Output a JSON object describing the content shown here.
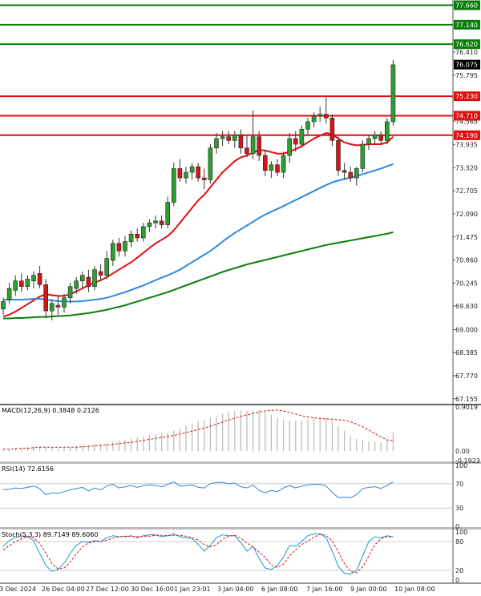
{
  "chart_data": {
    "type": "candlestick",
    "title": "",
    "price_axis": {
      "range": [
        67.0,
        77.8
      ],
      "ticks": [
        "76.410",
        "75.795",
        "75.180",
        "74.565",
        "73.935",
        "73.320",
        "72.705",
        "72.090",
        "71.475",
        "70.860",
        "70.245",
        "69.630",
        "69.000",
        "68.385",
        "67.770",
        "67.155"
      ],
      "current_price": "76.075"
    },
    "x_labels": [
      "23 Dec 2024",
      "26 Dec 04:00",
      "27 Dec 12:00",
      "30 Dec 16:00",
      "1 Jan 23:01",
      "3 Jan 04:00",
      "6 Jan 08:00",
      "7 Jan 16:00",
      "9 Jan 00:00",
      "10 Jan 08:00"
    ],
    "levels": [
      {
        "value": 77.66,
        "label": "77.660",
        "color": "#0a7d0a"
      },
      {
        "value": 77.14,
        "label": "77.140",
        "color": "#0a7d0a"
      },
      {
        "value": 76.62,
        "label": "76.620",
        "color": "#0a7d0a"
      },
      {
        "value": 75.23,
        "label": "75.230",
        "color": "#e01010"
      },
      {
        "value": 74.71,
        "label": "74.710",
        "color": "#e01010"
      },
      {
        "value": 74.19,
        "label": "74.190",
        "color": "#e01010"
      }
    ],
    "candles": [
      {
        "o": 69.55,
        "h": 69.85,
        "l": 69.4,
        "c": 69.75
      },
      {
        "o": 69.8,
        "h": 70.25,
        "l": 69.7,
        "c": 70.1
      },
      {
        "o": 70.05,
        "h": 70.45,
        "l": 69.9,
        "c": 70.3
      },
      {
        "o": 70.3,
        "h": 70.5,
        "l": 70.0,
        "c": 70.15
      },
      {
        "o": 70.15,
        "h": 70.45,
        "l": 70.05,
        "c": 70.35
      },
      {
        "o": 70.3,
        "h": 70.55,
        "l": 70.1,
        "c": 70.45
      },
      {
        "o": 70.5,
        "h": 70.7,
        "l": 70.1,
        "c": 70.2
      },
      {
        "o": 70.2,
        "h": 70.35,
        "l": 69.3,
        "c": 69.5
      },
      {
        "o": 69.5,
        "h": 69.8,
        "l": 69.25,
        "c": 69.7
      },
      {
        "o": 69.65,
        "h": 69.9,
        "l": 69.4,
        "c": 69.6
      },
      {
        "o": 69.6,
        "h": 69.95,
        "l": 69.45,
        "c": 69.85
      },
      {
        "o": 69.85,
        "h": 70.25,
        "l": 69.7,
        "c": 70.15
      },
      {
        "o": 70.1,
        "h": 70.4,
        "l": 69.95,
        "c": 70.3
      },
      {
        "o": 70.3,
        "h": 70.55,
        "l": 70.1,
        "c": 70.45
      },
      {
        "o": 70.4,
        "h": 70.6,
        "l": 70.0,
        "c": 70.15
      },
      {
        "o": 70.15,
        "h": 70.7,
        "l": 70.05,
        "c": 70.6
      },
      {
        "o": 70.55,
        "h": 70.75,
        "l": 70.3,
        "c": 70.45
      },
      {
        "o": 70.45,
        "h": 71.1,
        "l": 70.35,
        "c": 70.9
      },
      {
        "o": 70.85,
        "h": 71.4,
        "l": 70.7,
        "c": 71.3
      },
      {
        "o": 71.3,
        "h": 71.45,
        "l": 70.95,
        "c": 71.1
      },
      {
        "o": 71.1,
        "h": 71.5,
        "l": 70.95,
        "c": 71.35
      },
      {
        "o": 71.35,
        "h": 71.65,
        "l": 71.2,
        "c": 71.55
      },
      {
        "o": 71.55,
        "h": 71.7,
        "l": 71.35,
        "c": 71.45
      },
      {
        "o": 71.45,
        "h": 71.85,
        "l": 71.35,
        "c": 71.75
      },
      {
        "o": 71.75,
        "h": 71.95,
        "l": 71.6,
        "c": 71.85
      },
      {
        "o": 71.85,
        "h": 72.05,
        "l": 71.7,
        "c": 71.9
      },
      {
        "o": 71.9,
        "h": 72.05,
        "l": 71.7,
        "c": 71.8
      },
      {
        "o": 71.8,
        "h": 72.55,
        "l": 71.7,
        "c": 72.4
      },
      {
        "o": 72.4,
        "h": 73.45,
        "l": 72.3,
        "c": 73.3
      },
      {
        "o": 73.3,
        "h": 73.55,
        "l": 72.95,
        "c": 73.05
      },
      {
        "o": 73.05,
        "h": 73.35,
        "l": 72.9,
        "c": 73.2
      },
      {
        "o": 73.2,
        "h": 73.45,
        "l": 73.0,
        "c": 73.35
      },
      {
        "o": 73.35,
        "h": 73.45,
        "l": 72.95,
        "c": 73.05
      },
      {
        "o": 73.05,
        "h": 73.3,
        "l": 72.75,
        "c": 73.0
      },
      {
        "o": 73.0,
        "h": 73.95,
        "l": 72.9,
        "c": 73.85
      },
      {
        "o": 73.85,
        "h": 74.25,
        "l": 73.7,
        "c": 74.1
      },
      {
        "o": 74.1,
        "h": 74.3,
        "l": 73.9,
        "c": 74.15
      },
      {
        "o": 74.15,
        "h": 74.3,
        "l": 73.95,
        "c": 74.05
      },
      {
        "o": 74.05,
        "h": 74.3,
        "l": 73.85,
        "c": 74.2
      },
      {
        "o": 74.2,
        "h": 74.35,
        "l": 73.7,
        "c": 73.85
      },
      {
        "o": 73.85,
        "h": 74.2,
        "l": 73.6,
        "c": 73.7
      },
      {
        "o": 73.7,
        "h": 74.85,
        "l": 73.55,
        "c": 74.15
      },
      {
        "o": 74.15,
        "h": 74.3,
        "l": 73.5,
        "c": 73.65
      },
      {
        "o": 73.65,
        "h": 73.8,
        "l": 73.1,
        "c": 73.25
      },
      {
        "o": 73.25,
        "h": 73.5,
        "l": 73.05,
        "c": 73.4
      },
      {
        "o": 73.4,
        "h": 73.55,
        "l": 73.1,
        "c": 73.2
      },
      {
        "o": 73.2,
        "h": 73.75,
        "l": 73.05,
        "c": 73.65
      },
      {
        "o": 73.65,
        "h": 74.25,
        "l": 73.45,
        "c": 74.1
      },
      {
        "o": 74.1,
        "h": 74.3,
        "l": 73.75,
        "c": 73.95
      },
      {
        "o": 73.95,
        "h": 74.45,
        "l": 73.85,
        "c": 74.35
      },
      {
        "o": 74.35,
        "h": 74.65,
        "l": 74.2,
        "c": 74.55
      },
      {
        "o": 74.55,
        "h": 74.8,
        "l": 74.4,
        "c": 74.7
      },
      {
        "o": 74.7,
        "h": 74.95,
        "l": 74.55,
        "c": 74.75
      },
      {
        "o": 74.75,
        "h": 75.2,
        "l": 74.5,
        "c": 74.65
      },
      {
        "o": 74.65,
        "h": 74.75,
        "l": 73.9,
        "c": 74.05
      },
      {
        "o": 74.05,
        "h": 74.15,
        "l": 73.1,
        "c": 73.25
      },
      {
        "o": 73.25,
        "h": 73.45,
        "l": 73.0,
        "c": 73.2
      },
      {
        "o": 73.2,
        "h": 73.35,
        "l": 72.95,
        "c": 73.05
      },
      {
        "o": 73.05,
        "h": 73.35,
        "l": 72.85,
        "c": 73.3
      },
      {
        "o": 73.3,
        "h": 74.05,
        "l": 73.2,
        "c": 73.95
      },
      {
        "o": 73.95,
        "h": 74.2,
        "l": 73.8,
        "c": 74.1
      },
      {
        "o": 74.1,
        "h": 74.3,
        "l": 73.95,
        "c": 74.2
      },
      {
        "o": 74.2,
        "h": 74.3,
        "l": 73.95,
        "c": 74.05
      },
      {
        "o": 74.05,
        "h": 74.65,
        "l": 73.95,
        "c": 74.55
      },
      {
        "o": 74.55,
        "h": 76.2,
        "l": 74.45,
        "c": 76.07
      }
    ],
    "moving_averages": [
      {
        "name": "MA fast",
        "color": "#e01010",
        "values": [
          69.35,
          69.4,
          69.48,
          69.58,
          69.68,
          69.78,
          69.88,
          69.95,
          69.92,
          69.9,
          69.9,
          69.95,
          70.02,
          70.1,
          70.18,
          70.25,
          70.32,
          70.4,
          70.5,
          70.6,
          70.7,
          70.8,
          70.92,
          71.05,
          71.18,
          71.3,
          71.4,
          71.5,
          71.65,
          71.85,
          72.05,
          72.25,
          72.45,
          72.6,
          72.8,
          73.0,
          73.2,
          73.35,
          73.5,
          73.6,
          73.65,
          73.72,
          73.8,
          73.78,
          73.74,
          73.7,
          73.7,
          73.75,
          73.82,
          73.9,
          74.0,
          74.1,
          74.18,
          74.25,
          74.22,
          74.1,
          74.0,
          73.95,
          73.92,
          73.93,
          73.95,
          73.95,
          73.95,
          74.0,
          74.15
        ]
      },
      {
        "name": "MA mid",
        "color": "#2a8ae0",
        "values": [
          69.8,
          69.8,
          69.8,
          69.8,
          69.81,
          69.82,
          69.82,
          69.8,
          69.78,
          69.76,
          69.75,
          69.75,
          69.75,
          69.76,
          69.78,
          69.8,
          69.82,
          69.85,
          69.9,
          69.95,
          70.0,
          70.06,
          70.12,
          70.18,
          70.25,
          70.32,
          70.39,
          70.45,
          70.52,
          70.6,
          70.7,
          70.8,
          70.9,
          71.0,
          71.1,
          71.22,
          71.35,
          71.47,
          71.58,
          71.68,
          71.78,
          71.88,
          71.98,
          72.07,
          72.15,
          72.22,
          72.3,
          72.38,
          72.46,
          72.54,
          72.62,
          72.7,
          72.78,
          72.86,
          72.93,
          72.98,
          73.02,
          73.06,
          73.1,
          73.15,
          73.2,
          73.25,
          73.3,
          73.36,
          73.42
        ]
      },
      {
        "name": "MA slow",
        "color": "#0a7d0a",
        "values": [
          69.3,
          69.3,
          69.31,
          69.31,
          69.32,
          69.33,
          69.34,
          69.34,
          69.35,
          69.36,
          69.37,
          69.38,
          69.4,
          69.42,
          69.44,
          69.47,
          69.5,
          69.53,
          69.57,
          69.61,
          69.65,
          69.7,
          69.75,
          69.8,
          69.85,
          69.9,
          69.95,
          70.0,
          70.06,
          70.12,
          70.18,
          70.24,
          70.3,
          70.36,
          70.42,
          70.48,
          70.54,
          70.59,
          70.64,
          70.69,
          70.74,
          70.78,
          70.82,
          70.86,
          70.9,
          70.94,
          70.98,
          71.02,
          71.06,
          71.1,
          71.14,
          71.18,
          71.22,
          71.26,
          71.29,
          71.32,
          71.35,
          71.38,
          71.41,
          71.44,
          71.47,
          71.5,
          71.53,
          71.56,
          71.6
        ]
      }
    ],
    "macd": {
      "title": "MACD(12,26,9) 0.3848 0.2126",
      "range": [
        -0.1923,
        0.9019
      ],
      "ticks": [
        "0.9019",
        "0.00",
        "-0.1923"
      ],
      "signal_color": "#e01010",
      "histogram": [
        0.04,
        0.05,
        0.07,
        0.08,
        0.09,
        0.1,
        0.1,
        0.08,
        0.07,
        0.06,
        0.06,
        0.07,
        0.09,
        0.11,
        0.12,
        0.13,
        0.14,
        0.16,
        0.19,
        0.22,
        0.24,
        0.26,
        0.28,
        0.3,
        0.33,
        0.35,
        0.37,
        0.38,
        0.42,
        0.47,
        0.52,
        0.57,
        0.61,
        0.64,
        0.68,
        0.72,
        0.76,
        0.79,
        0.82,
        0.83,
        0.82,
        0.83,
        0.84,
        0.8,
        0.74,
        0.68,
        0.64,
        0.62,
        0.62,
        0.63,
        0.65,
        0.67,
        0.68,
        0.68,
        0.62,
        0.52,
        0.42,
        0.32,
        0.25,
        0.22,
        0.2,
        0.19,
        0.18,
        0.22,
        0.38
      ],
      "signal": [
        0.04,
        0.04,
        0.05,
        0.06,
        0.06,
        0.07,
        0.08,
        0.08,
        0.08,
        0.08,
        0.08,
        0.08,
        0.08,
        0.09,
        0.1,
        0.11,
        0.12,
        0.13,
        0.14,
        0.15,
        0.17,
        0.18,
        0.2,
        0.22,
        0.24,
        0.26,
        0.28,
        0.3,
        0.32,
        0.35,
        0.38,
        0.41,
        0.44,
        0.47,
        0.51,
        0.55,
        0.59,
        0.63,
        0.67,
        0.71,
        0.74,
        0.77,
        0.8,
        0.82,
        0.83,
        0.84,
        0.82,
        0.79,
        0.76,
        0.72,
        0.7,
        0.68,
        0.67,
        0.66,
        0.65,
        0.64,
        0.63,
        0.6,
        0.55,
        0.5,
        0.43,
        0.36,
        0.29,
        0.23,
        0.21
      ]
    },
    "rsi": {
      "title": "RSI(14) 72.6156",
      "range": [
        0,
        100
      ],
      "ticks": [
        "100",
        "70",
        "30",
        "0"
      ],
      "values": [
        60,
        61,
        63,
        62,
        64,
        66,
        62,
        52,
        55,
        54,
        57,
        60,
        62,
        64,
        58,
        63,
        60,
        66,
        69,
        63,
        65,
        67,
        64,
        67,
        68,
        67,
        65,
        69,
        73,
        66,
        67,
        68,
        64,
        63,
        70,
        72,
        72,
        70,
        71,
        65,
        63,
        68,
        59,
        55,
        59,
        57,
        63,
        67,
        63,
        66,
        68,
        69,
        69,
        66,
        56,
        47,
        48,
        47,
        52,
        62,
        64,
        65,
        62,
        67,
        73
      ]
    },
    "stoch": {
      "title": "Stoch(5,3,3) 89.7149 89.6060",
      "range": [
        0,
        100
      ],
      "ticks": [
        "100",
        "80",
        "20",
        "0"
      ],
      "k": [
        70,
        82,
        88,
        92,
        90,
        82,
        55,
        30,
        18,
        22,
        35,
        55,
        72,
        80,
        78,
        82,
        80,
        88,
        92,
        90,
        90,
        92,
        88,
        92,
        94,
        94,
        90,
        92,
        96,
        90,
        88,
        86,
        74,
        60,
        72,
        88,
        94,
        92,
        92,
        78,
        60,
        70,
        45,
        25,
        22,
        30,
        48,
        72,
        70,
        80,
        92,
        96,
        96,
        88,
        60,
        28,
        14,
        12,
        20,
        50,
        80,
        90,
        88,
        92,
        90
      ],
      "d": [
        62,
        72,
        80,
        86,
        90,
        88,
        76,
        56,
        34,
        23,
        25,
        37,
        54,
        69,
        77,
        80,
        80,
        83,
        87,
        90,
        91,
        91,
        90,
        91,
        91,
        93,
        93,
        92,
        93,
        93,
        91,
        88,
        83,
        73,
        69,
        73,
        85,
        91,
        93,
        87,
        77,
        69,
        58,
        47,
        31,
        26,
        33,
        50,
        63,
        74,
        81,
        89,
        95,
        93,
        81,
        59,
        34,
        18,
        15,
        27,
        50,
        73,
        86,
        90,
        90
      ]
    }
  }
}
